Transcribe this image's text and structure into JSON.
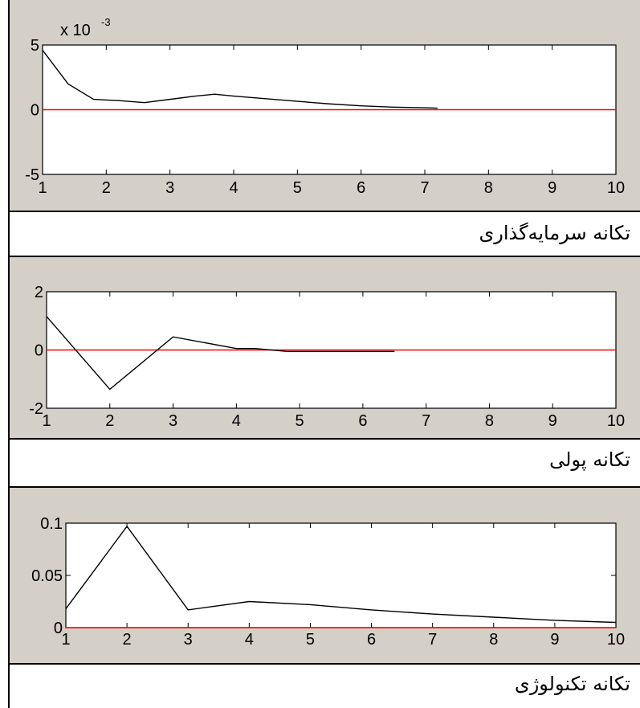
{
  "chart_data": [
    {
      "type": "line",
      "caption": "تکانه سرمایه‌گذاری",
      "exponent_label": "x 10",
      "exponent_power": "-3",
      "x": [
        1,
        1.4,
        1.8,
        2.2,
        2.6,
        3.0,
        3.4,
        3.7,
        4.0,
        4.5,
        5.0,
        5.5,
        6.0,
        6.5,
        7.0,
        7.2
      ],
      "series": [
        {
          "color": "#000000",
          "values": [
            4.6,
            2.0,
            0.8,
            0.7,
            0.55,
            0.8,
            1.05,
            1.2,
            1.05,
            0.85,
            0.65,
            0.45,
            0.3,
            0.2,
            0.15,
            0.12
          ]
        },
        {
          "color": "#ff0000",
          "values": [
            0,
            0,
            0,
            0,
            0,
            0,
            0,
            0,
            0,
            0,
            0,
            0,
            0,
            0,
            0,
            0
          ]
        }
      ],
      "xlim": [
        1,
        10
      ],
      "ylim": [
        -5,
        5
      ],
      "xticks": [
        "1",
        "2",
        "3",
        "4",
        "5",
        "6",
        "7",
        "8",
        "9",
        "10"
      ],
      "yticks": [
        "5",
        "0",
        "-5"
      ],
      "ytick_values": [
        5,
        0,
        -5
      ]
    },
    {
      "type": "line",
      "caption": "تکانه پولی",
      "x": [
        1,
        2,
        3,
        4,
        4.3,
        4.8,
        5.5,
        6.0,
        6.5
      ],
      "series": [
        {
          "color": "#000000",
          "values": [
            1.15,
            -1.35,
            0.45,
            0.05,
            0.05,
            -0.05,
            -0.05,
            -0.05,
            -0.05
          ]
        },
        {
          "color": "#ff0000",
          "values": [
            0,
            0,
            0,
            0,
            0,
            0,
            0,
            0,
            0
          ]
        }
      ],
      "xlim": [
        1,
        10
      ],
      "ylim": [
        -2,
        2
      ],
      "xticks": [
        "1",
        "2",
        "3",
        "4",
        "5",
        "6",
        "7",
        "8",
        "9",
        "10"
      ],
      "yticks": [
        "2",
        "0",
        "-2"
      ],
      "ytick_values": [
        2,
        0,
        -2
      ]
    },
    {
      "type": "line",
      "caption": "تکانه تکنولوژی",
      "x": [
        1,
        2,
        3,
        4,
        5,
        6,
        7,
        8,
        9,
        10
      ],
      "series": [
        {
          "color": "#000000",
          "values": [
            0.018,
            0.097,
            0.017,
            0.025,
            0.022,
            0.017,
            0.013,
            0.01,
            0.007,
            0.005
          ]
        },
        {
          "color": "#ff0000",
          "values": [
            0,
            0,
            0,
            0,
            0,
            0,
            0,
            0,
            0,
            0
          ]
        }
      ],
      "xlim": [
        1,
        10
      ],
      "ylim": [
        0,
        0.1
      ],
      "xticks": [
        "1",
        "2",
        "3",
        "4",
        "5",
        "6",
        "7",
        "8",
        "9",
        "10"
      ],
      "yticks": [
        "0.1",
        "0.05",
        "0"
      ],
      "ytick_values": [
        0.1,
        0.05,
        0
      ]
    }
  ]
}
